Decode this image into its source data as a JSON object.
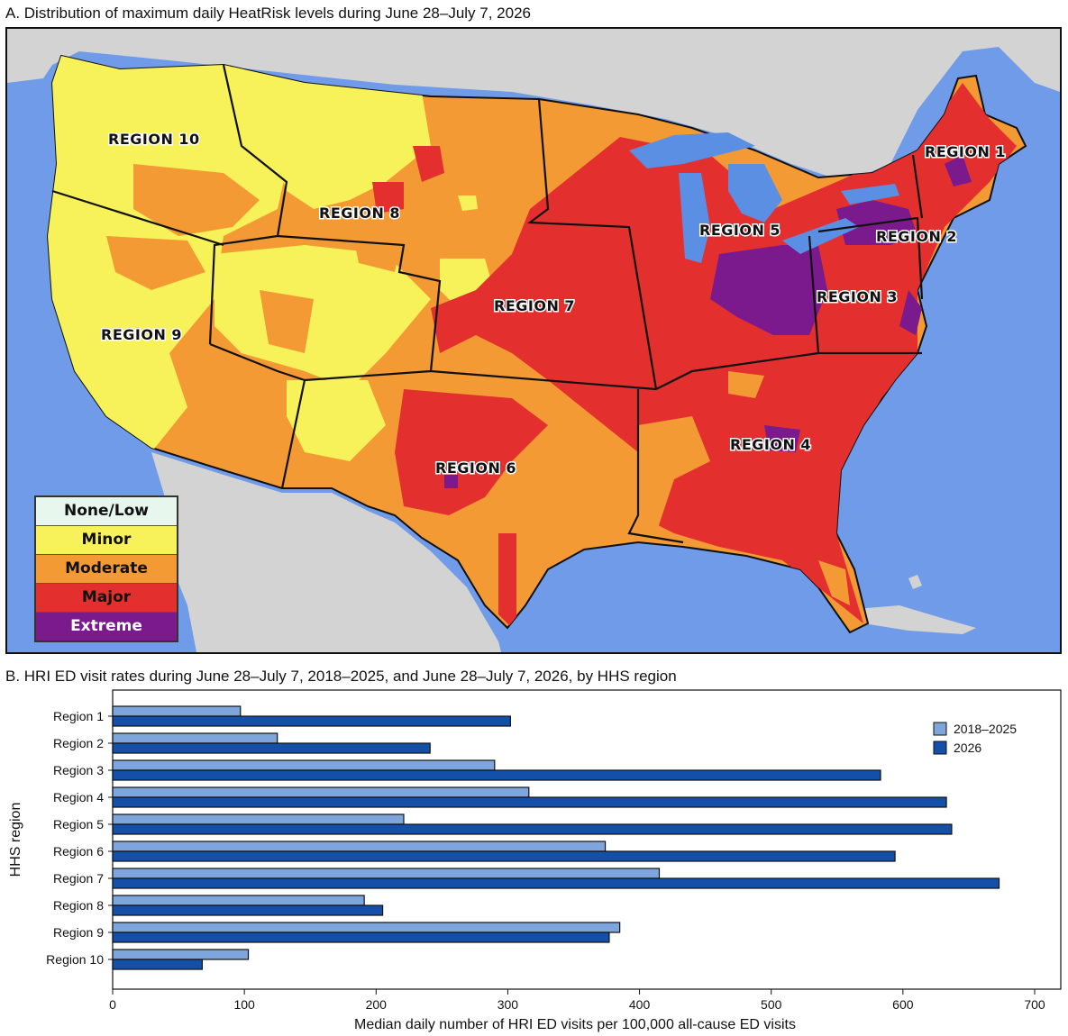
{
  "panel_a": {
    "title": "A. Distribution of maximum daily HeatRisk levels during June 28–July 7, 2026",
    "legend": [
      {
        "label": "None/Low",
        "color": "#e8f7ee"
      },
      {
        "label": "Minor",
        "color": "#f7f25a"
      },
      {
        "label": "Moderate",
        "color": "#f39a35"
      },
      {
        "label": "Major",
        "color": "#e3302f"
      },
      {
        "label": "Extreme",
        "color": "#7a1a8c",
        "text_color": "#ffffff"
      }
    ],
    "colors": {
      "ocean": "#6f9be8",
      "land_outside": "#d3d3d3",
      "lakes": "#5b8fe3"
    },
    "region_labels": [
      {
        "key": "r10",
        "label": "REGION 10",
        "level": "Minor"
      },
      {
        "key": "r9",
        "label": "REGION 9",
        "level": "Minor"
      },
      {
        "key": "r8",
        "label": "REGION 8",
        "level": "Moderate"
      },
      {
        "key": "r7",
        "label": "REGION 7",
        "level": "Major"
      },
      {
        "key": "r6",
        "label": "REGION 6",
        "level": "Major"
      },
      {
        "key": "r5",
        "label": "REGION 5",
        "level": "Major"
      },
      {
        "key": "r4",
        "label": "REGION 4",
        "level": "Major"
      },
      {
        "key": "r3",
        "label": "REGION 3",
        "level": "Extreme"
      },
      {
        "key": "r2",
        "label": "REGION 2",
        "level": "Major"
      },
      {
        "key": "r1",
        "label": "REGION 1",
        "level": "Major"
      }
    ]
  },
  "panel_b": {
    "title": "B. HRI ED visit rates during June 28–July 7, 2018–2025, and June 28–July 7, 2026, by HHS region",
    "chart_data": {
      "type": "bar",
      "orientation": "horizontal",
      "categories": [
        "Region 1",
        "Region 2",
        "Region 3",
        "Region 4",
        "Region 5",
        "Region 6",
        "Region 7",
        "Region 8",
        "Region 9",
        "Region 10"
      ],
      "series": [
        {
          "name": "2018–2025",
          "color": "#7ea6dc",
          "values": [
            97,
            125,
            290,
            316,
            221,
            374,
            415,
            191,
            385,
            103
          ]
        },
        {
          "name": "2026",
          "color": "#1450a8",
          "values": [
            302,
            241,
            583,
            633,
            637,
            594,
            673,
            205,
            377,
            68
          ]
        }
      ],
      "xlabel": "Median daily number of HRI ED visits per 100,000 all-cause ED visits",
      "ylabel": "HHS region",
      "xlim": [
        0,
        700
      ],
      "xticks": [
        0,
        100,
        200,
        300,
        400,
        500,
        600,
        700
      ],
      "legend_position": "top-right",
      "grid": false
    }
  }
}
